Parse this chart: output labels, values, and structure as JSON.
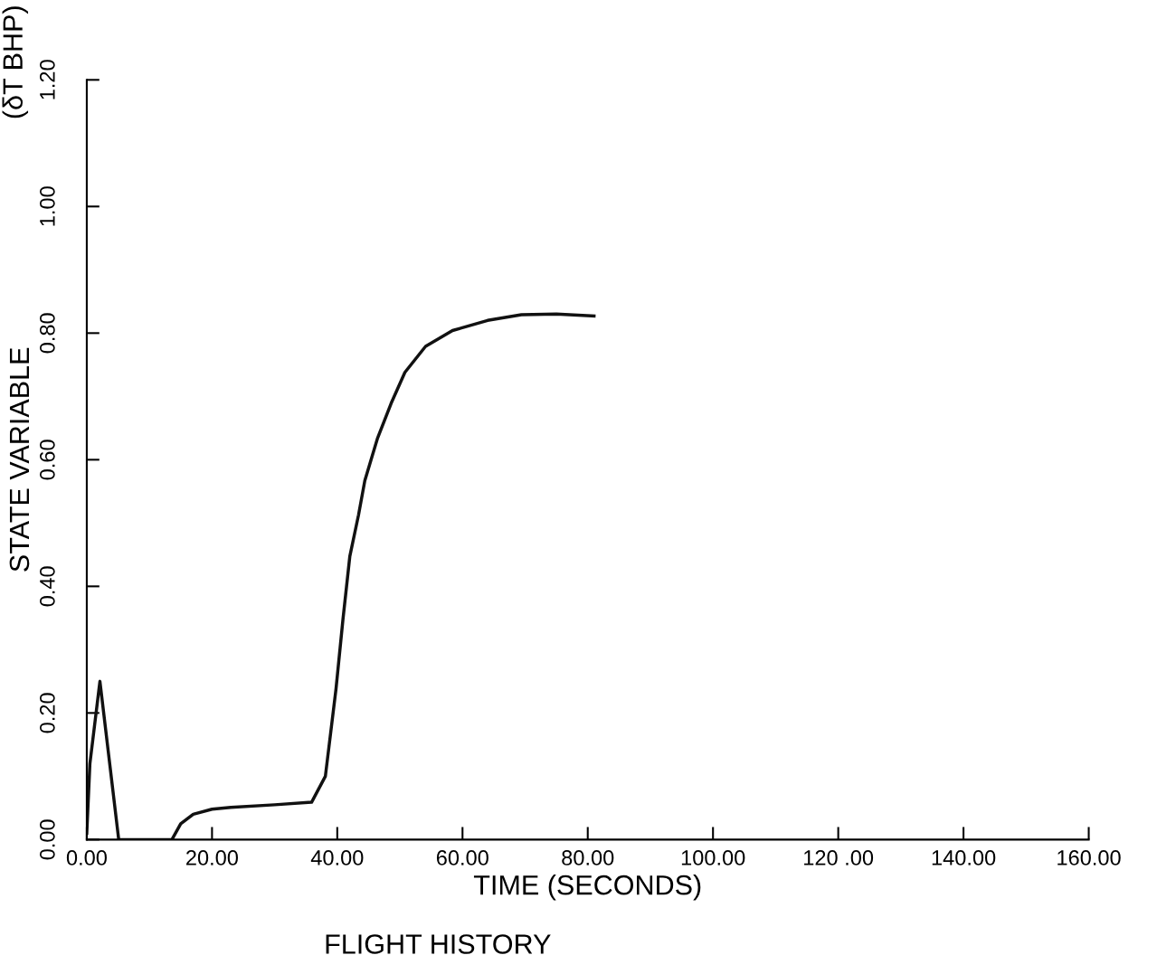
{
  "chart_data": {
    "type": "line",
    "title": "FLIGHT HISTORY",
    "xlabel": "TIME (SECONDS)",
    "ylabel": "STATE VARIABLE",
    "annotations": [
      "(δT BHP)"
    ],
    "x": [
      0,
      0.5,
      2.1,
      5.1,
      13.6,
      15,
      17,
      20,
      23,
      30,
      35.9,
      38.1,
      39.8,
      40.9,
      42.0,
      43.4,
      44.4,
      46.4,
      48.6,
      50.8,
      54.1,
      58.4,
      64.0,
      69.4,
      75.0,
      81.0
    ],
    "series": [
      {
        "color": "#111111",
        "values": [
          0.01,
          0.12,
          0.25,
          0,
          0,
          0.025,
          0.04,
          0.048,
          0.051,
          0.055,
          0.059,
          0.1,
          0.238,
          0.347,
          0.447,
          0.513,
          0.567,
          0.633,
          0.689,
          0.738,
          0.779,
          0.804,
          0.82,
          0.829,
          0.83,
          0.827
        ]
      }
    ],
    "xlim": [
      0,
      160
    ],
    "ylim": [
      0,
      1.2
    ],
    "xticks": [
      {
        "value": 0,
        "label": "0.00"
      },
      {
        "value": 20,
        "label": "20.00"
      },
      {
        "value": 40,
        "label": "40.00"
      },
      {
        "value": 60,
        "label": "60.00"
      },
      {
        "value": 80,
        "label": "80.00"
      },
      {
        "value": 100,
        "label": "100.00"
      },
      {
        "value": 120,
        "label": "120 .00"
      },
      {
        "value": 140,
        "label": "140.00"
      },
      {
        "value": 160,
        "label": "160.00"
      }
    ],
    "yticks": [
      {
        "value": 0,
        "label": "0.00"
      },
      {
        "value": 0.2,
        "label": "0.20"
      },
      {
        "value": 0.4,
        "label": "0.40"
      },
      {
        "value": 0.6,
        "label": "0.60"
      },
      {
        "value": 0.8,
        "label": "0.80"
      },
      {
        "value": 1.0,
        "label": "1.00"
      },
      {
        "value": 1.2,
        "label": "1.20"
      }
    ],
    "grid": false,
    "legend": false
  }
}
